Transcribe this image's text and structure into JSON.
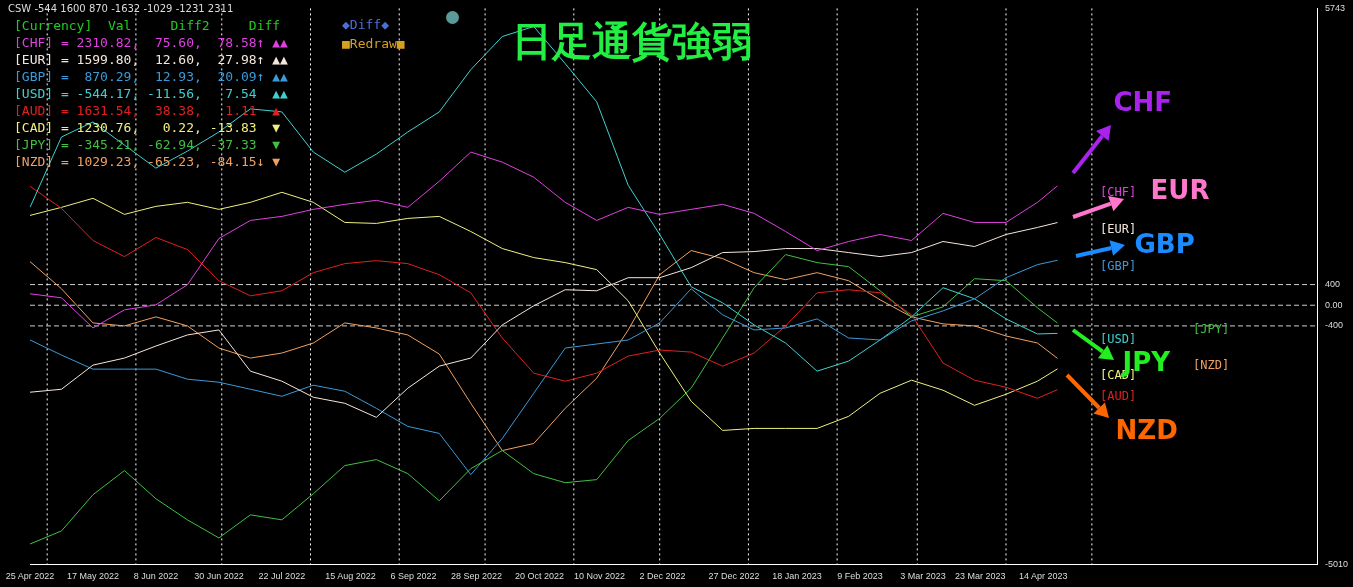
{
  "chart_data": {
    "type": "line",
    "title": "日足通貨強弱",
    "annotations": [
      "CSW -544 1600 870 -1632 -1029 -1231 2311",
      "[Currency]  Val     Diff2     Diff",
      "[CHF] = 2310.82,  75.60,  78.58↑ ▲▲",
      "[EUR] = 1599.80,  12.60,  27.98↑ ▲▲",
      "[GBP] =  870.29,  12.93,  20.09↑ ▲▲",
      "[USD] = -544.17, -11.56,   7.54  ▲▲",
      "[AUD] = 1631.54,  38.38,   1.11  ▲",
      "[CAD] = 1230.76,   0.22, -13.83  ▼",
      "[JPY] = -345.21, -62.94, -37.33  ▼",
      "[NZD] = 1029.23, -65.23, -84.15↓ ▼",
      "◆Diff◆",
      "■Redraw■",
      "CHF",
      "EUR",
      {
        "text": "GBP",
        "x": "2023-04-19",
        "y": 870
      },
      {
        "text": "JPY",
        "x": "2023-04-19",
        "y": -345
      },
      "NZD"
    ],
    "x": [
      "2022-04-25",
      "2022-05-06",
      "2022-05-17",
      "2022-05-28",
      "2022-06-08",
      "2022-06-19",
      "2022-06-30",
      "2022-07-11",
      "2022-07-22",
      "2022-08-02",
      "2022-08-13",
      "2022-08-24",
      "2022-09-04",
      "2022-09-15",
      "2022-09-26",
      "2022-10-07",
      "2022-10-18",
      "2022-10-29",
      "2022-11-09",
      "2022-11-20",
      "2022-12-01",
      "2022-12-12",
      "2022-12-23",
      "2023-01-03",
      "2023-01-14",
      "2023-01-25",
      "2023-02-05",
      "2023-02-16",
      "2023-02-27",
      "2023-03-10",
      "2023-03-21",
      "2023-04-01",
      "2023-04-12",
      "2023-04-19"
    ],
    "xlim": [
      "2022-04-25",
      "2023-07-19"
    ],
    "xticks": [
      {
        "value": "2022-04-25",
        "label": "25 Apr 2022"
      },
      {
        "value": "2022-05-17",
        "label": "17 May 2022"
      },
      {
        "value": "2022-06-08",
        "label": "8 Jun 2022"
      },
      {
        "value": "2022-06-30",
        "label": "30 Jun 2022"
      },
      {
        "value": "2022-07-22",
        "label": "22 Jul 2022"
      },
      {
        "value": "2022-08-15",
        "label": "15 Aug 2022"
      },
      {
        "value": "2022-09-06",
        "label": "6 Sep 2022"
      },
      {
        "value": "2022-09-28",
        "label": "28 Sep 2022"
      },
      {
        "value": "2022-10-20",
        "label": "20 Oct 2022"
      },
      {
        "value": "2022-11-10",
        "label": "10 Nov 2022"
      },
      {
        "value": "2022-12-02",
        "label": "2 Dec 2022"
      },
      {
        "value": "2022-12-27",
        "label": "27 Dec 2022"
      },
      {
        "value": "2023-01-18",
        "label": "18 Jan 2023"
      },
      {
        "value": "2023-02-09",
        "label": "9 Feb 2023"
      },
      {
        "value": "2023-03-03",
        "label": "3 Mar 2023"
      },
      {
        "value": "2023-03-23",
        "label": "23 Mar 2023"
      },
      {
        "value": "2023-04-14",
        "label": "14 Apr 2023"
      }
    ],
    "ylim": [
      -5010,
      5743
    ],
    "yticks": [
      5743,
      400,
      {
        "value": 0,
        "label": "0.00"
      },
      -400,
      -5010
    ],
    "series": [
      {
        "name": "[CHF]",
        "color": "#e040e0",
        "values": [
          222,
          144,
          -439,
          -89,
          8,
          397,
          1291,
          1641,
          1719,
          1855,
          1952,
          2030,
          1894,
          2399,
          2963,
          2769,
          2477,
          1991,
          1641,
          1894,
          1758,
          1855,
          1952,
          1777,
          1427,
          1058,
          1233,
          1369,
          1252,
          1777,
          1602,
          1602,
          1991,
          2311
        ]
      },
      {
        "name": "[EUR]",
        "color": "#f5e6dc",
        "values": [
          -1683,
          -1625,
          -1158,
          -1022,
          -789,
          -575,
          -478,
          -1275,
          -1469,
          -1780,
          -1897,
          -2169,
          -1605,
          -1178,
          -1022,
          -381,
          -11,
          300,
          280,
          533,
          533,
          727,
          1019,
          1038,
          1097,
          1097,
          1019,
          941,
          1019,
          1233,
          1136,
          1369,
          1505,
          1600
        ]
      },
      {
        "name": "[GBP]",
        "color": "#3a9ad9",
        "values": [
          -672,
          -964,
          -1236,
          -1236,
          -1236,
          -1430,
          -1489,
          -1625,
          -1761,
          -1547,
          -1664,
          -1994,
          -2344,
          -2480,
          -3277,
          -2577,
          -1703,
          -828,
          -750,
          -672,
          -342,
          319,
          -186,
          -478,
          -439,
          -264,
          -633,
          -672,
          -303,
          -109,
          125,
          533,
          786,
          870
        ]
      },
      {
        "name": "[USD]",
        "color": "#40d0d0",
        "values": [
          1894,
          3255,
          3546,
          3099,
          2652,
          2982,
          3352,
          3799,
          3741,
          2963,
          2574,
          2924,
          3352,
          3741,
          4557,
          5199,
          5393,
          4674,
          3935,
          2321,
          1369,
          358,
          47,
          -381,
          -731,
          -1275,
          -1081,
          -672,
          -225,
          339,
          125,
          -264,
          -556,
          -544
        ]
      },
      {
        "name": "[AUD]",
        "color": "#e02020",
        "values": [
          2302,
          1874,
          1252,
          941,
          1311,
          1077,
          475,
          183,
          280,
          630,
          805,
          863,
          805,
          591,
          241,
          -633,
          -1314,
          -1469,
          -1314,
          -983,
          -867,
          -906,
          -1178,
          -925,
          -400,
          241,
          300,
          241,
          -186,
          -1119,
          -1450,
          -1586,
          -1800,
          -1632
        ]
      },
      {
        "name": "[CAD]",
        "color": "#f0f080",
        "values": [
          1738,
          1894,
          2069,
          1758,
          1913,
          1991,
          1855,
          1991,
          2185,
          1991,
          1602,
          1583,
          1680,
          1719,
          1427,
          1097,
          922,
          825,
          689,
          86,
          -925,
          -1858,
          -2422,
          -2383,
          -2383,
          -2383,
          -2150,
          -1703,
          -1450,
          -1644,
          -1936,
          -1722,
          -1469,
          -1231
        ]
      },
      {
        "name": "[JPY]",
        "color": "#40c040",
        "values": [
          -4619,
          -4366,
          -3666,
          -3199,
          -3744,
          -4152,
          -4502,
          -4055,
          -4152,
          -3647,
          -3102,
          -2986,
          -3258,
          -3783,
          -3161,
          -2811,
          -3258,
          -3433,
          -3374,
          -2616,
          -2189,
          -1605,
          -633,
          339,
          980,
          825,
          747,
          280,
          -225,
          -31,
          514,
          475,
          -50,
          -345
        ]
      },
      {
        "name": "[NZD]",
        "color": "#f0a060",
        "values": [
          844,
          319,
          -342,
          -400,
          -225,
          -400,
          -828,
          -1022,
          -925,
          -731,
          -342,
          -439,
          -575,
          -944,
          -1897,
          -2811,
          -2675,
          -1994,
          -1411,
          -478,
          591,
          1058,
          902,
          630,
          494,
          630,
          475,
          105,
          -225,
          -361,
          -400,
          -595,
          -731,
          -1029
        ]
      }
    ],
    "ref_lines": [
      {
        "axis": "y",
        "value": 400,
        "color": "#cccccc",
        "line_style": "dashed"
      },
      {
        "axis": "y",
        "value": 0,
        "color": "#cccccc",
        "line_style": "dashed"
      },
      {
        "axis": "y",
        "value": -400,
        "color": "#cccccc",
        "line_style": "dashed"
      },
      {
        "axis": "x",
        "value": "2022-05-01",
        "color": "#ffffff",
        "line_style": "dotted"
      },
      {
        "axis": "x",
        "value": "2022-06-01",
        "color": "#ffffff",
        "line_style": "dotted"
      },
      {
        "axis": "x",
        "value": "2022-07-01",
        "color": "#ffffff",
        "line_style": "dotted"
      },
      {
        "axis": "x",
        "value": "2022-08-01",
        "color": "#ffffff",
        "line_style": "dotted"
      },
      {
        "axis": "x",
        "value": "2022-09-01",
        "color": "#ffffff",
        "line_style": "dotted"
      },
      {
        "axis": "x",
        "value": "2022-10-01",
        "color": "#ffffff",
        "line_style": "dotted"
      },
      {
        "axis": "x",
        "value": "2022-11-01",
        "color": "#ffffff",
        "line_style": "dotted"
      },
      {
        "axis": "x",
        "value": "2022-12-01",
        "color": "#ffffff",
        "line_style": "dotted"
      },
      {
        "axis": "x",
        "value": "2023-01-01",
        "color": "#ffffff",
        "line_style": "dotted"
      },
      {
        "axis": "x",
        "value": "2023-02-01",
        "color": "#ffffff",
        "line_style": "dotted"
      },
      {
        "axis": "x",
        "value": "2023-03-01",
        "color": "#ffffff",
        "line_style": "dotted"
      },
      {
        "axis": "x",
        "value": "2023-04-01",
        "color": "#ffffff",
        "line_style": "dotted"
      },
      {
        "axis": "x",
        "value": "2023-05-01",
        "color": "#ffffff",
        "line_style": "dotted"
      }
    ],
    "legend": false,
    "grid": false,
    "marker": "none",
    "line_style": "solid"
  }
}
